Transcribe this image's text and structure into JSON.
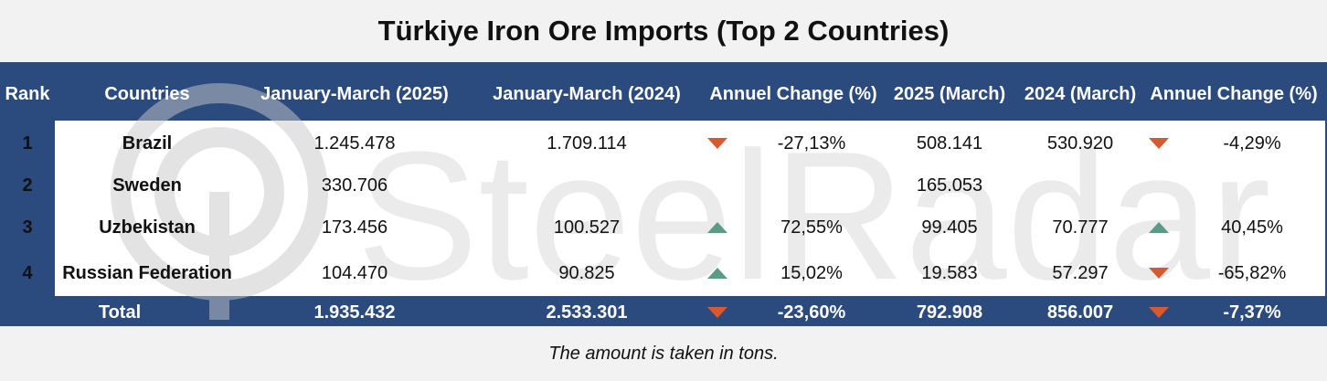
{
  "title": "Türkiye Iron Ore Imports (Top 2 Countries)",
  "watermark": "SteelRadar",
  "footnote": "The amount is taken in tons.",
  "colors": {
    "header_bg": "#2b4a7e",
    "down_arrow": "#d9592f",
    "up_arrow": "#5b9a83"
  },
  "chart_data": {
    "type": "table",
    "columns": [
      "Rank",
      "Countries",
      "January-March (2025)",
      "January-March (2024)",
      "Annuel Change (%)",
      "2025 (March)",
      "2024 (March)",
      "Annuel Change (%)"
    ],
    "rows": [
      {
        "rank": "1",
        "country": "Brazil",
        "jm2025": "1.245.478",
        "jm2024": "1.709.114",
        "chg1": "-27,13%",
        "dir1": "down",
        "m2025": "508.141",
        "m2024": "530.920",
        "chg2": "-4,29%",
        "dir2": "down"
      },
      {
        "rank": "2",
        "country": "Sweden",
        "jm2025": "330.706",
        "jm2024": "",
        "chg1": "",
        "dir1": "",
        "m2025": "165.053",
        "m2024": "",
        "chg2": "",
        "dir2": ""
      },
      {
        "rank": "3",
        "country": "Uzbekistan",
        "jm2025": "173.456",
        "jm2024": "100.527",
        "chg1": "72,55%",
        "dir1": "up",
        "m2025": "99.405",
        "m2024": "70.777",
        "chg2": "40,45%",
        "dir2": "up"
      },
      {
        "rank": "4",
        "country": "Russian Federation",
        "jm2025": "104.470",
        "jm2024": "90.825",
        "chg1": "15,02%",
        "dir1": "up",
        "m2025": "19.583",
        "m2024": "57.297",
        "chg2": "-65,82%",
        "dir2": "down"
      }
    ],
    "total": {
      "label": "Total",
      "jm2025": "1.935.432",
      "jm2024": "2.533.301",
      "chg1": "-23,60%",
      "dir1": "down",
      "m2025": "792.908",
      "m2024": "856.007",
      "chg2": "-7,37%",
      "dir2": "down"
    }
  }
}
